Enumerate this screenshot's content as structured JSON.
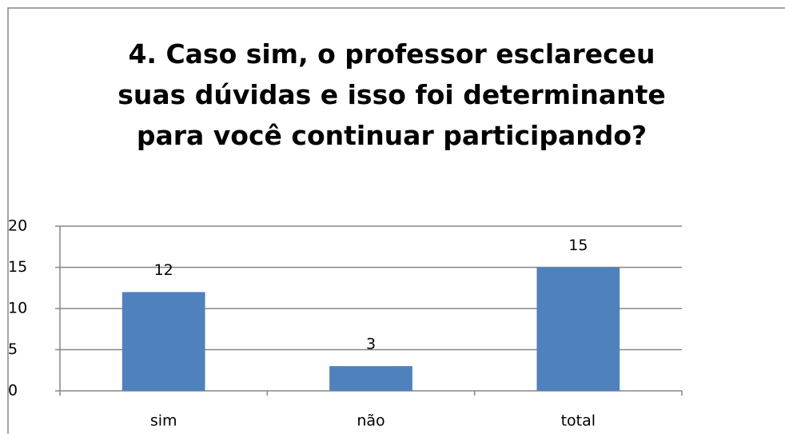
{
  "chart_data": {
    "type": "bar",
    "title": "4. Caso sim, o professor esclareceu suas dúvidas e isso foi determinante para você continuar participando?",
    "categories": [
      "sim",
      "não",
      "total"
    ],
    "values": [
      12,
      3,
      15
    ],
    "color": "#4f81bd",
    "ylim": [
      0,
      20
    ],
    "yticks": [
      0,
      5,
      10,
      15,
      20
    ],
    "grid": true
  }
}
